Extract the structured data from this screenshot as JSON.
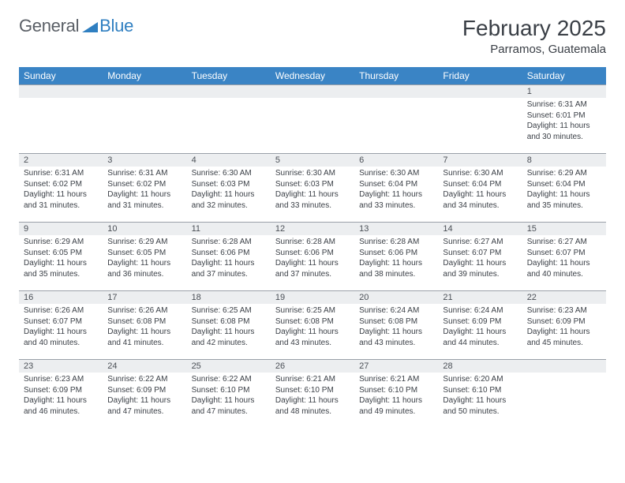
{
  "brand": {
    "part1": "General",
    "part2": "Blue"
  },
  "title": "February 2025",
  "location": "Parramos, Guatemala",
  "colors": {
    "header_bg": "#3a84c5",
    "header_fg": "#ffffff",
    "daynum_bg": "#eceef0",
    "text": "#3a3f46",
    "brand_gray": "#5a5f66",
    "brand_blue": "#2f7fc1",
    "row_border": "#9aa0a8"
  },
  "weekdays": [
    "Sunday",
    "Monday",
    "Tuesday",
    "Wednesday",
    "Thursday",
    "Friday",
    "Saturday"
  ],
  "weeks": [
    [
      {
        "n": "",
        "sr": "",
        "ss": "",
        "dl": ""
      },
      {
        "n": "",
        "sr": "",
        "ss": "",
        "dl": ""
      },
      {
        "n": "",
        "sr": "",
        "ss": "",
        "dl": ""
      },
      {
        "n": "",
        "sr": "",
        "ss": "",
        "dl": ""
      },
      {
        "n": "",
        "sr": "",
        "ss": "",
        "dl": ""
      },
      {
        "n": "",
        "sr": "",
        "ss": "",
        "dl": ""
      },
      {
        "n": "1",
        "sr": "Sunrise: 6:31 AM",
        "ss": "Sunset: 6:01 PM",
        "dl": "Daylight: 11 hours and 30 minutes."
      }
    ],
    [
      {
        "n": "2",
        "sr": "Sunrise: 6:31 AM",
        "ss": "Sunset: 6:02 PM",
        "dl": "Daylight: 11 hours and 31 minutes."
      },
      {
        "n": "3",
        "sr": "Sunrise: 6:31 AM",
        "ss": "Sunset: 6:02 PM",
        "dl": "Daylight: 11 hours and 31 minutes."
      },
      {
        "n": "4",
        "sr": "Sunrise: 6:30 AM",
        "ss": "Sunset: 6:03 PM",
        "dl": "Daylight: 11 hours and 32 minutes."
      },
      {
        "n": "5",
        "sr": "Sunrise: 6:30 AM",
        "ss": "Sunset: 6:03 PM",
        "dl": "Daylight: 11 hours and 33 minutes."
      },
      {
        "n": "6",
        "sr": "Sunrise: 6:30 AM",
        "ss": "Sunset: 6:04 PM",
        "dl": "Daylight: 11 hours and 33 minutes."
      },
      {
        "n": "7",
        "sr": "Sunrise: 6:30 AM",
        "ss": "Sunset: 6:04 PM",
        "dl": "Daylight: 11 hours and 34 minutes."
      },
      {
        "n": "8",
        "sr": "Sunrise: 6:29 AM",
        "ss": "Sunset: 6:04 PM",
        "dl": "Daylight: 11 hours and 35 minutes."
      }
    ],
    [
      {
        "n": "9",
        "sr": "Sunrise: 6:29 AM",
        "ss": "Sunset: 6:05 PM",
        "dl": "Daylight: 11 hours and 35 minutes."
      },
      {
        "n": "10",
        "sr": "Sunrise: 6:29 AM",
        "ss": "Sunset: 6:05 PM",
        "dl": "Daylight: 11 hours and 36 minutes."
      },
      {
        "n": "11",
        "sr": "Sunrise: 6:28 AM",
        "ss": "Sunset: 6:06 PM",
        "dl": "Daylight: 11 hours and 37 minutes."
      },
      {
        "n": "12",
        "sr": "Sunrise: 6:28 AM",
        "ss": "Sunset: 6:06 PM",
        "dl": "Daylight: 11 hours and 37 minutes."
      },
      {
        "n": "13",
        "sr": "Sunrise: 6:28 AM",
        "ss": "Sunset: 6:06 PM",
        "dl": "Daylight: 11 hours and 38 minutes."
      },
      {
        "n": "14",
        "sr": "Sunrise: 6:27 AM",
        "ss": "Sunset: 6:07 PM",
        "dl": "Daylight: 11 hours and 39 minutes."
      },
      {
        "n": "15",
        "sr": "Sunrise: 6:27 AM",
        "ss": "Sunset: 6:07 PM",
        "dl": "Daylight: 11 hours and 40 minutes."
      }
    ],
    [
      {
        "n": "16",
        "sr": "Sunrise: 6:26 AM",
        "ss": "Sunset: 6:07 PM",
        "dl": "Daylight: 11 hours and 40 minutes."
      },
      {
        "n": "17",
        "sr": "Sunrise: 6:26 AM",
        "ss": "Sunset: 6:08 PM",
        "dl": "Daylight: 11 hours and 41 minutes."
      },
      {
        "n": "18",
        "sr": "Sunrise: 6:25 AM",
        "ss": "Sunset: 6:08 PM",
        "dl": "Daylight: 11 hours and 42 minutes."
      },
      {
        "n": "19",
        "sr": "Sunrise: 6:25 AM",
        "ss": "Sunset: 6:08 PM",
        "dl": "Daylight: 11 hours and 43 minutes."
      },
      {
        "n": "20",
        "sr": "Sunrise: 6:24 AM",
        "ss": "Sunset: 6:08 PM",
        "dl": "Daylight: 11 hours and 43 minutes."
      },
      {
        "n": "21",
        "sr": "Sunrise: 6:24 AM",
        "ss": "Sunset: 6:09 PM",
        "dl": "Daylight: 11 hours and 44 minutes."
      },
      {
        "n": "22",
        "sr": "Sunrise: 6:23 AM",
        "ss": "Sunset: 6:09 PM",
        "dl": "Daylight: 11 hours and 45 minutes."
      }
    ],
    [
      {
        "n": "23",
        "sr": "Sunrise: 6:23 AM",
        "ss": "Sunset: 6:09 PM",
        "dl": "Daylight: 11 hours and 46 minutes."
      },
      {
        "n": "24",
        "sr": "Sunrise: 6:22 AM",
        "ss": "Sunset: 6:09 PM",
        "dl": "Daylight: 11 hours and 47 minutes."
      },
      {
        "n": "25",
        "sr": "Sunrise: 6:22 AM",
        "ss": "Sunset: 6:10 PM",
        "dl": "Daylight: 11 hours and 47 minutes."
      },
      {
        "n": "26",
        "sr": "Sunrise: 6:21 AM",
        "ss": "Sunset: 6:10 PM",
        "dl": "Daylight: 11 hours and 48 minutes."
      },
      {
        "n": "27",
        "sr": "Sunrise: 6:21 AM",
        "ss": "Sunset: 6:10 PM",
        "dl": "Daylight: 11 hours and 49 minutes."
      },
      {
        "n": "28",
        "sr": "Sunrise: 6:20 AM",
        "ss": "Sunset: 6:10 PM",
        "dl": "Daylight: 11 hours and 50 minutes."
      },
      {
        "n": "",
        "sr": "",
        "ss": "",
        "dl": ""
      }
    ]
  ]
}
